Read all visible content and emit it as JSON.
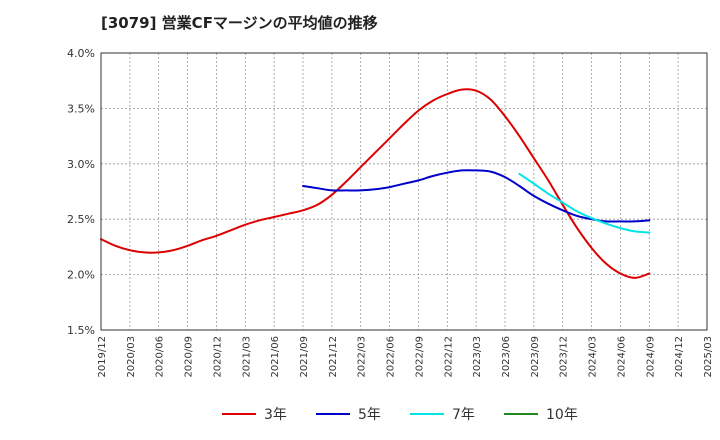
{
  "chart_data": {
    "type": "line",
    "title": "[3079]  営業CFマージンの平均値の推移",
    "xlabel": "",
    "ylabel": "",
    "ylim": [
      1.5,
      4.0
    ],
    "y_ticks": [
      "1.5%",
      "2.0%",
      "2.5%",
      "3.0%",
      "3.5%",
      "4.0%"
    ],
    "y_tick_values": [
      1.5,
      2.0,
      2.5,
      3.0,
      3.5,
      4.0
    ],
    "x_ticks": [
      "2019/12",
      "2020/03",
      "2020/06",
      "2020/09",
      "2020/12",
      "2021/03",
      "2021/06",
      "2021/09",
      "2021/12",
      "2022/03",
      "2022/06",
      "2022/09",
      "2022/12",
      "2023/03",
      "2023/06",
      "2023/09",
      "2023/12",
      "2024/03",
      "2024/06",
      "2024/09",
      "2024/12",
      "2025/03"
    ],
    "grid": true,
    "legend_position": "bottom",
    "series": [
      {
        "name": "3年",
        "color": "#dd0000",
        "x_index": [
          0,
          0.5,
          1,
          1.5,
          2,
          2.5,
          3,
          3.5,
          4,
          4.5,
          5,
          5.5,
          6,
          6.5,
          7,
          7.5,
          8,
          8.5,
          9,
          9.5,
          10,
          10.5,
          11,
          11.5,
          12,
          12.5,
          13,
          13.5,
          14,
          14.5,
          15,
          15.5,
          16,
          16.5,
          17,
          17.5,
          18,
          18.5,
          19
        ],
        "values": [
          2.32,
          2.26,
          2.22,
          2.2,
          2.2,
          2.22,
          2.26,
          2.31,
          2.35,
          2.4,
          2.45,
          2.49,
          2.52,
          2.55,
          2.58,
          2.63,
          2.72,
          2.84,
          2.97,
          3.1,
          3.23,
          3.36,
          3.48,
          3.57,
          3.63,
          3.67,
          3.66,
          3.58,
          3.43,
          3.25,
          3.05,
          2.85,
          2.63,
          2.42,
          2.24,
          2.1,
          2.01,
          1.97,
          2.01
        ]
      },
      {
        "name": "5年",
        "color": "#0000cc",
        "x_index": [
          7,
          7.5,
          8,
          8.5,
          9,
          9.5,
          10,
          10.5,
          11,
          11.5,
          12,
          12.5,
          13,
          13.5,
          14,
          14.5,
          15,
          15.5,
          16,
          16.5,
          17,
          17.5,
          18,
          18.5,
          19
        ],
        "values": [
          2.8,
          2.78,
          2.76,
          2.76,
          2.76,
          2.77,
          2.79,
          2.82,
          2.85,
          2.89,
          2.92,
          2.94,
          2.94,
          2.93,
          2.88,
          2.8,
          2.71,
          2.64,
          2.58,
          2.53,
          2.5,
          2.48,
          2.48,
          2.48,
          2.49
        ]
      },
      {
        "name": "7年",
        "color": "#00e5e5",
        "x_index": [
          14.5,
          15,
          15.5,
          16,
          16.5,
          17,
          17.5,
          18,
          18.5,
          19
        ],
        "values": [
          2.91,
          2.82,
          2.73,
          2.65,
          2.57,
          2.51,
          2.46,
          2.42,
          2.39,
          2.38
        ]
      },
      {
        "name": "10年",
        "color": "#228822",
        "x_index": [],
        "values": []
      }
    ]
  }
}
